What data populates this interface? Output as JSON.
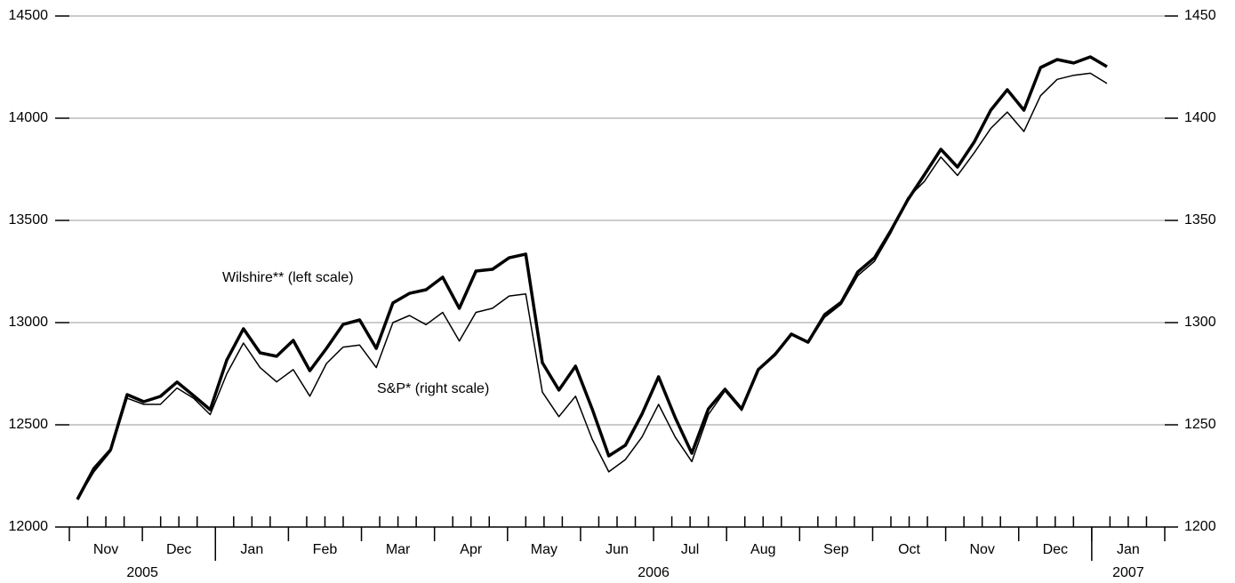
{
  "chart_data": {
    "type": "line",
    "categories": [
      null,
      null,
      null,
      null,
      null,
      null,
      null,
      null,
      null,
      null,
      null,
      null,
      null,
      null,
      null,
      null,
      null,
      null,
      null,
      null,
      null,
      null,
      null,
      null,
      null,
      null,
      null,
      null,
      null,
      null,
      null,
      null,
      null,
      null,
      null,
      null,
      null,
      null,
      null,
      null,
      null,
      null,
      null,
      null,
      null,
      null,
      null,
      null,
      null,
      null,
      null,
      null,
      null,
      null,
      null,
      null,
      null,
      null,
      null,
      null,
      null,
      null,
      null
    ],
    "months": [
      "Nov",
      "Dec",
      "Jan",
      "Feb",
      "Mar",
      "Apr",
      "May",
      "Jun",
      "Jul",
      "Aug",
      "Sep",
      "Oct",
      "Nov",
      "Dec",
      "Jan"
    ],
    "years": [
      {
        "label": "2005",
        "months": 2
      },
      {
        "label": "2006",
        "months": 12
      },
      {
        "label": "2007",
        "months": 1
      }
    ],
    "series": [
      {
        "name": "Wilshire** (left scale)",
        "color": "#000000",
        "axis": "y",
        "values": [
          12135,
          12287,
          12378,
          12648,
          12613,
          12639,
          12709,
          12643,
          12574,
          12817,
          12970,
          12852,
          12835,
          12913,
          12765,
          12874,
          12991,
          13013,
          12874,
          13096,
          13143,
          13161,
          13222,
          13070,
          13252,
          13261,
          13317,
          13335,
          12804,
          12670,
          12787,
          12578,
          12348,
          12400,
          12552,
          12735,
          12535,
          12361,
          12578,
          12674,
          12578,
          12770,
          12843,
          12944,
          12904,
          13039,
          13100,
          13248,
          13317,
          13452,
          13600,
          13722,
          13848,
          13761,
          13883,
          14039,
          14139,
          14039,
          14248,
          14287,
          14270,
          14300,
          14252
        ]
      },
      {
        "name": "S&P* (right scale)",
        "color": "#000000",
        "axis": "y2",
        "values": [
          1213.5,
          1227,
          1237,
          1263,
          1260,
          1260,
          1268,
          1263,
          1255,
          1275,
          1290,
          1278,
          1271,
          1277,
          1264,
          1280,
          1288,
          1289,
          1278,
          1300,
          1303.5,
          1299,
          1305,
          1291,
          1305,
          1307,
          1313,
          1314,
          1266,
          1254,
          1264,
          1243,
          1227,
          1233,
          1244,
          1260,
          1244,
          1232,
          1255,
          1266.5,
          1257,
          1277,
          1285,
          1294,
          1290,
          1302.6,
          1309,
          1323,
          1330,
          1344,
          1361,
          1369,
          1381,
          1372,
          1383,
          1395,
          1403,
          1393.5,
          1411,
          1419,
          1421,
          1422,
          1417
        ]
      }
    ],
    "ylim": [
      12000,
      14500
    ],
    "yticks": [
      12000,
      12500,
      13000,
      13500,
      14000,
      14500
    ],
    "y2lim": [
      1200,
      1450
    ],
    "y2ticks": [
      1200,
      1250,
      1300,
      1350,
      1400,
      1450
    ],
    "grid": true
  }
}
